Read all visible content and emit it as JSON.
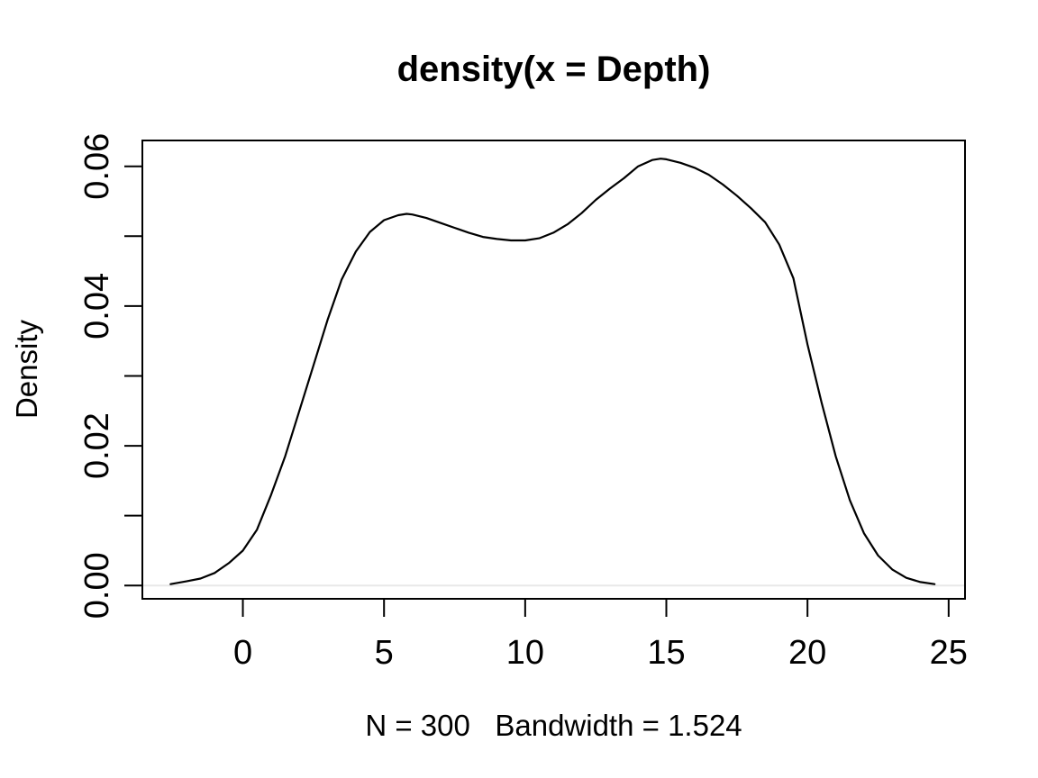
{
  "figure": {
    "background": "#ffffff",
    "foreground": "#000000",
    "zero_line_color": "#e8e8e8"
  },
  "chart_data": {
    "type": "line",
    "title": "density(x = Depth)",
    "xlabel": "N = 300   Bandwidth = 1.524",
    "ylabel": "Density",
    "n": 300,
    "bandwidth": 1.524,
    "grid": false,
    "legend_position": "none",
    "zero_line": true,
    "xlim": [
      -3.56,
      25.58
    ],
    "ylim": [
      -0.0019,
      0.0637
    ],
    "x_ticks": [
      0,
      5,
      10,
      15,
      20,
      25
    ],
    "x_tick_labels": [
      "0",
      "5",
      "10",
      "15",
      "20",
      "25"
    ],
    "y_ticks_minor": [
      0.01,
      0.03,
      0.05
    ],
    "y_ticks_labeled": [
      {
        "v": 0.0,
        "label": "0.00"
      },
      {
        "v": 0.02,
        "label": "0.02"
      },
      {
        "v": 0.04,
        "label": "0.04"
      },
      {
        "v": 0.06,
        "label": "0.06"
      }
    ],
    "series": [
      {
        "name": "density",
        "color": "#000000",
        "x": [
          -2.56,
          -2,
          -1.5,
          -1,
          -0.5,
          0,
          0.5,
          1,
          1.5,
          2,
          2.5,
          3,
          3.5,
          4,
          4.5,
          5,
          5.5,
          5.8,
          6,
          6.5,
          7,
          7.5,
          8,
          8.5,
          9,
          9.5,
          10,
          10.5,
          11,
          11.5,
          12,
          12.5,
          13,
          13.5,
          14,
          14.5,
          14.8,
          15,
          15.5,
          16,
          16.5,
          17,
          17.5,
          18,
          18.5,
          19,
          19.5,
          20,
          20.5,
          21,
          21.5,
          22,
          22.5,
          23,
          23.5,
          24,
          24.5
        ],
        "y": [
          0.0002,
          0.0006,
          0.001,
          0.0018,
          0.0032,
          0.005,
          0.008,
          0.013,
          0.0185,
          0.025,
          0.0315,
          0.038,
          0.0438,
          0.0478,
          0.0506,
          0.0523,
          0.053,
          0.0532,
          0.0531,
          0.0526,
          0.0519,
          0.0512,
          0.0505,
          0.0499,
          0.0496,
          0.0494,
          0.0494,
          0.0497,
          0.0505,
          0.0517,
          0.0533,
          0.0552,
          0.0568,
          0.0583,
          0.06,
          0.0609,
          0.0611,
          0.061,
          0.0605,
          0.0598,
          0.0588,
          0.0574,
          0.0558,
          0.054,
          0.052,
          0.0488,
          0.044,
          0.0345,
          0.0262,
          0.0185,
          0.0122,
          0.0075,
          0.0043,
          0.0023,
          0.0011,
          0.0005,
          0.0002
        ]
      }
    ]
  }
}
